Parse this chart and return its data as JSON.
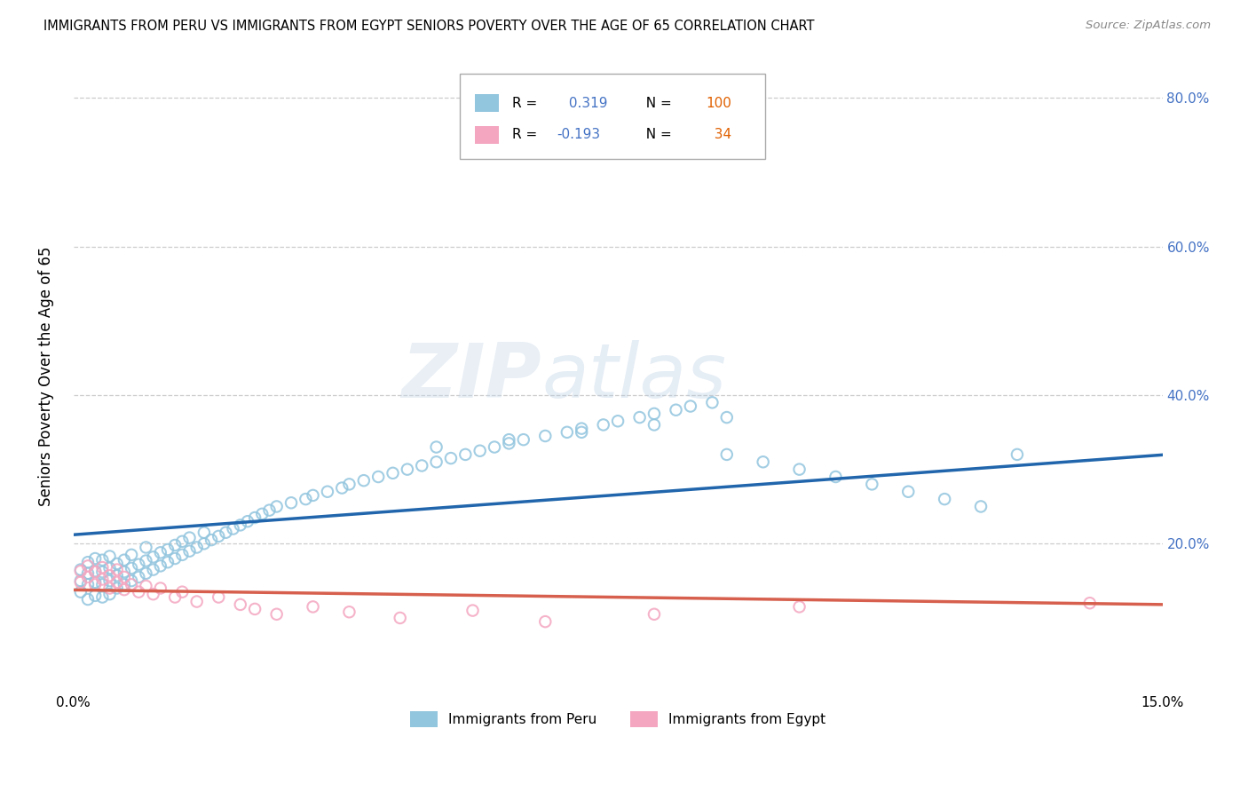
{
  "title": "IMMIGRANTS FROM PERU VS IMMIGRANTS FROM EGYPT SENIORS POVERTY OVER THE AGE OF 65 CORRELATION CHART",
  "source": "Source: ZipAtlas.com",
  "ylabel": "Seniors Poverty Over the Age of 65",
  "xlim": [
    0.0,
    0.15
  ],
  "ylim": [
    0.0,
    0.85
  ],
  "ytick_vals": [
    0.2,
    0.4,
    0.6,
    0.8
  ],
  "ytick_labels": [
    "20.0%",
    "40.0%",
    "60.0%",
    "80.0%"
  ],
  "xtick_vals": [
    0.0,
    0.15
  ],
  "xtick_labels": [
    "0.0%",
    "15.0%"
  ],
  "peru_R": 0.319,
  "peru_N": 100,
  "egypt_R": -0.193,
  "egypt_N": 34,
  "peru_color": "#92c5de",
  "egypt_color": "#f4a6c0",
  "peru_line_color": "#2166ac",
  "egypt_line_color": "#d6604d",
  "legend_peru": "Immigrants from Peru",
  "legend_egypt": "Immigrants from Egypt",
  "peru_scatter_x": [
    0.001,
    0.001,
    0.001,
    0.002,
    0.002,
    0.002,
    0.002,
    0.003,
    0.003,
    0.003,
    0.003,
    0.004,
    0.004,
    0.004,
    0.004,
    0.005,
    0.005,
    0.005,
    0.005,
    0.006,
    0.006,
    0.006,
    0.007,
    0.007,
    0.007,
    0.008,
    0.008,
    0.008,
    0.009,
    0.009,
    0.01,
    0.01,
    0.01,
    0.011,
    0.011,
    0.012,
    0.012,
    0.013,
    0.013,
    0.014,
    0.014,
    0.015,
    0.015,
    0.016,
    0.016,
    0.017,
    0.018,
    0.018,
    0.019,
    0.02,
    0.021,
    0.022,
    0.023,
    0.024,
    0.025,
    0.026,
    0.027,
    0.028,
    0.03,
    0.032,
    0.033,
    0.035,
    0.037,
    0.038,
    0.04,
    0.042,
    0.044,
    0.046,
    0.048,
    0.05,
    0.052,
    0.054,
    0.056,
    0.058,
    0.06,
    0.062,
    0.065,
    0.068,
    0.07,
    0.073,
    0.075,
    0.078,
    0.08,
    0.083,
    0.085,
    0.088,
    0.09,
    0.095,
    0.1,
    0.105,
    0.11,
    0.115,
    0.12,
    0.125,
    0.05,
    0.06,
    0.07,
    0.08,
    0.09,
    0.13
  ],
  "peru_scatter_y": [
    0.135,
    0.15,
    0.165,
    0.125,
    0.145,
    0.16,
    0.175,
    0.13,
    0.148,
    0.163,
    0.18,
    0.128,
    0.145,
    0.162,
    0.178,
    0.132,
    0.15,
    0.167,
    0.183,
    0.14,
    0.157,
    0.173,
    0.145,
    0.162,
    0.178,
    0.15,
    0.167,
    0.185,
    0.155,
    0.172,
    0.16,
    0.177,
    0.195,
    0.165,
    0.182,
    0.17,
    0.188,
    0.175,
    0.192,
    0.18,
    0.198,
    0.185,
    0.203,
    0.19,
    0.208,
    0.195,
    0.2,
    0.215,
    0.205,
    0.21,
    0.215,
    0.22,
    0.225,
    0.23,
    0.235,
    0.24,
    0.245,
    0.25,
    0.255,
    0.26,
    0.265,
    0.27,
    0.275,
    0.28,
    0.285,
    0.29,
    0.295,
    0.3,
    0.305,
    0.31,
    0.315,
    0.32,
    0.325,
    0.33,
    0.335,
    0.34,
    0.345,
    0.35,
    0.355,
    0.36,
    0.365,
    0.37,
    0.375,
    0.38,
    0.385,
    0.39,
    0.32,
    0.31,
    0.3,
    0.29,
    0.28,
    0.27,
    0.26,
    0.25,
    0.33,
    0.34,
    0.35,
    0.36,
    0.37,
    0.32
  ],
  "egypt_scatter_x": [
    0.001,
    0.001,
    0.002,
    0.002,
    0.003,
    0.003,
    0.004,
    0.004,
    0.005,
    0.005,
    0.006,
    0.006,
    0.007,
    0.007,
    0.008,
    0.009,
    0.01,
    0.011,
    0.012,
    0.014,
    0.015,
    0.017,
    0.02,
    0.023,
    0.025,
    0.028,
    0.033,
    0.038,
    0.045,
    0.055,
    0.065,
    0.08,
    0.1,
    0.14
  ],
  "egypt_scatter_y": [
    0.148,
    0.163,
    0.155,
    0.17,
    0.145,
    0.162,
    0.152,
    0.168,
    0.14,
    0.157,
    0.148,
    0.165,
    0.138,
    0.155,
    0.145,
    0.135,
    0.143,
    0.132,
    0.14,
    0.128,
    0.135,
    0.122,
    0.128,
    0.118,
    0.112,
    0.105,
    0.115,
    0.108,
    0.1,
    0.11,
    0.095,
    0.105,
    0.115,
    0.12
  ]
}
